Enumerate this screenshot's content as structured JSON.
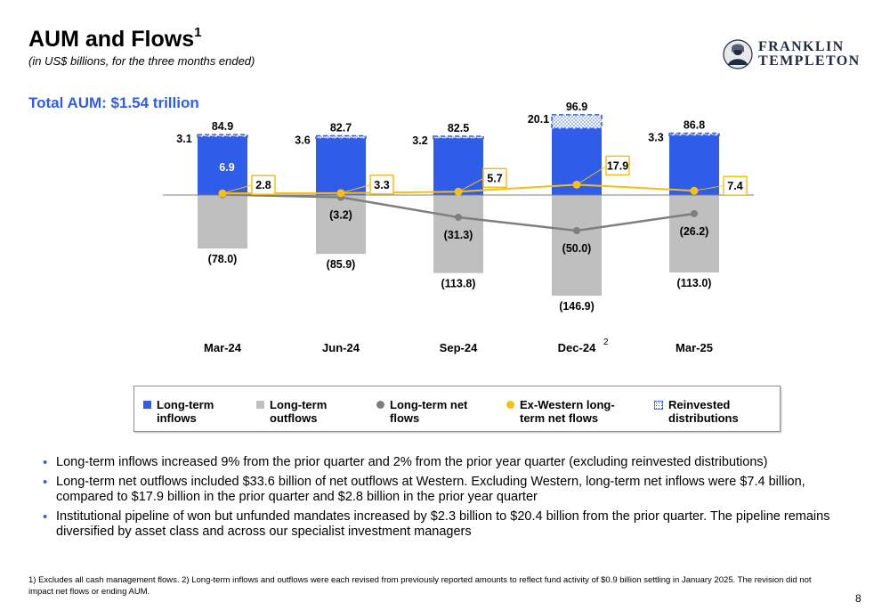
{
  "header": {
    "title": "AUM and Flows",
    "title_sup": "1",
    "subtitle": "(in US$ billions, for the three months ended)",
    "total_aum": "Total AUM: $1.54 trillion"
  },
  "logo": {
    "line1": "FRANKLIN",
    "line2": "TEMPLETON"
  },
  "colors": {
    "inflows": "#2f5ce8",
    "outflows": "#bfbfbf",
    "net_flows": "#7f7f7f",
    "ex_western": "#f5c013",
    "accent": "#2f5ce8"
  },
  "chart_data": {
    "type": "bar",
    "categories": [
      "Mar-24",
      "Jun-24",
      "Sep-24",
      "Dec-24",
      "Mar-25"
    ],
    "category_sup": [
      "",
      "",
      "",
      "2",
      ""
    ],
    "series": [
      {
        "name": "Long-term inflows",
        "values": [
          84.9,
          82.7,
          82.5,
          96.9,
          86.8
        ]
      },
      {
        "name": "Long-term outflows",
        "values": [
          -78.0,
          -85.9,
          -113.8,
          -146.9,
          -113.0
        ]
      },
      {
        "name": "Long-term net flows",
        "values": [
          6.9,
          -3.2,
          -31.3,
          -50.0,
          -26.2
        ]
      },
      {
        "name": "Ex-Western long-term net flows",
        "values": [
          2.8,
          3.3,
          5.7,
          17.9,
          7.4
        ]
      },
      {
        "name": "Reinvested distributions",
        "values": [
          3.1,
          3.6,
          3.2,
          20.1,
          3.3
        ]
      }
    ],
    "labels": {
      "inflows": [
        "84.9",
        "82.7",
        "82.5",
        "96.9",
        "86.8"
      ],
      "outflows": [
        "(78.0)",
        "(85.9)",
        "(113.8)",
        "(146.9)",
        "(113.0)"
      ],
      "net_flows": [
        "6.9",
        "(3.2)",
        "(31.3)",
        "(50.0)",
        "(26.2)"
      ],
      "ex_western": [
        "2.8",
        "3.3",
        "5.7",
        "17.9",
        "7.4"
      ],
      "reinvested": [
        "3.1",
        "3.6",
        "3.2",
        "20.1",
        "3.3"
      ]
    },
    "legend_position": "bottom"
  },
  "legend": [
    {
      "label": "Long-term inflows",
      "line1": "Long-term",
      "line2": "inflows"
    },
    {
      "label": "Long-term outflows",
      "line1": "Long-term",
      "line2": "outflows"
    },
    {
      "label": "Long-term net flows",
      "line1": "Long-term net",
      "line2": "flows"
    },
    {
      "label": "Ex-Western long-term net flows",
      "line1": "Ex-Western long-",
      "line2": "term net flows"
    },
    {
      "label": "Reinvested distributions",
      "line1": "Reinvested",
      "line2": "distributions"
    }
  ],
  "bullets": [
    "Long-term inflows increased 9% from the prior quarter and 2% from the prior year quarter (excluding reinvested distributions)",
    "Long-term net outflows included $33.6 billion of net outflows at Western. Excluding Western, long-term net inflows were $7.4 billion, compared to $17.9 billion in the prior quarter and $2.8 billion in the prior year quarter",
    "Institutional pipeline of won but unfunded mandates increased by $2.3 billion to $20.4 billion from the prior quarter. The pipeline remains diversified by asset class and across our specialist investment managers"
  ],
  "footnote": "1) Excludes all cash management flows. 2) Long-term inflows and outflows were each revised from previously reported amounts to reflect fund activity of $0.9 billion settling in January 2025. The revision did not impact net flows or ending AUM.",
  "page_number": "8"
}
